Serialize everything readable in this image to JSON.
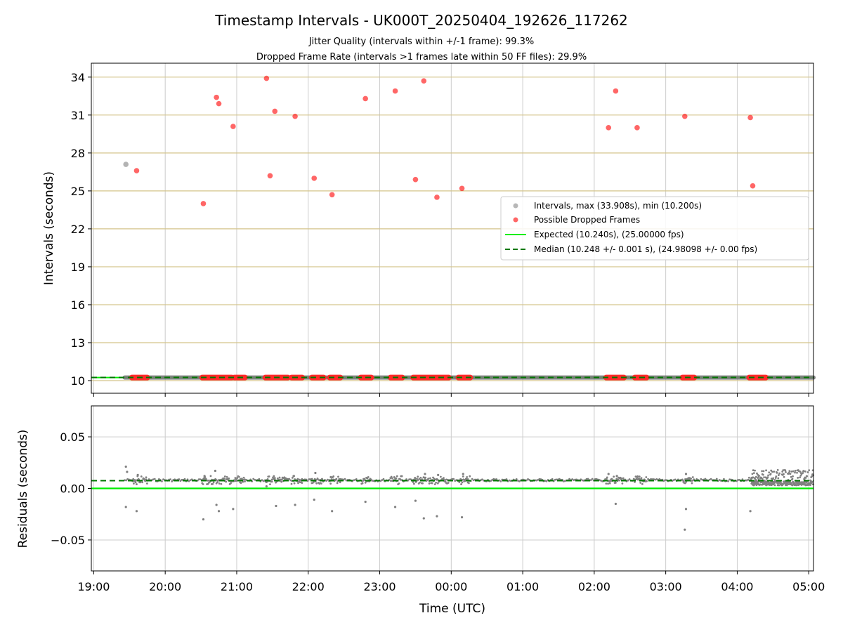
{
  "chart_data": [
    {
      "type": "scatter",
      "title": "Timestamp Intervals - UK000T_20250404_192626_117262",
      "subtitle_lines": [
        "Jitter Quality (intervals within +/-1 frame): 99.3%",
        "Dropped Frame Rate (intervals >1 frames late within 50 FF files): 29.9%"
      ],
      "xlabel": "",
      "ylabel": "Intervals (seconds)",
      "xlim": [
        "18:58",
        "05:04"
      ],
      "ylim": [
        9.0,
        35.1
      ],
      "yticks": [
        10,
        13,
        16,
        19,
        22,
        25,
        28,
        31,
        34
      ],
      "legend_position": "center-right",
      "series": [
        {
          "name": "Intervals, max (33.908s), min (10.200s)",
          "color": "#999999",
          "points": [
            {
              "x": "19:27",
              "y": 27.1
            }
          ],
          "baseline": {
            "x_start": "19:26",
            "x_end": "05:04",
            "y": 10.24
          }
        },
        {
          "name": "Possible Dropped Frames",
          "color": "#ff0000",
          "points": [
            {
              "x": "19:36",
              "y": 26.6
            },
            {
              "x": "20:32",
              "y": 24.0
            },
            {
              "x": "20:43",
              "y": 32.4
            },
            {
              "x": "20:45",
              "y": 31.9
            },
            {
              "x": "20:57",
              "y": 30.1
            },
            {
              "x": "21:25",
              "y": 33.9
            },
            {
              "x": "21:28",
              "y": 26.2
            },
            {
              "x": "21:32",
              "y": 31.3
            },
            {
              "x": "21:49",
              "y": 30.9
            },
            {
              "x": "22:05",
              "y": 26.0
            },
            {
              "x": "22:20",
              "y": 24.7
            },
            {
              "x": "22:48",
              "y": 32.3
            },
            {
              "x": "23:13",
              "y": 32.9
            },
            {
              "x": "23:30",
              "y": 25.9
            },
            {
              "x": "23:37",
              "y": 33.7
            },
            {
              "x": "23:48",
              "y": 24.5
            },
            {
              "x": "00:09",
              "y": 25.2
            },
            {
              "x": "02:12",
              "y": 30.0
            },
            {
              "x": "02:18",
              "y": 32.9
            },
            {
              "x": "02:36",
              "y": 30.0
            },
            {
              "x": "03:16",
              "y": 30.9
            },
            {
              "x": "04:11",
              "y": 30.8
            },
            {
              "x": "04:13",
              "y": 25.4
            }
          ],
          "dropped_bands": [
            [
              "19:32",
              "19:45"
            ],
            [
              "20:31",
              "20:56"
            ],
            [
              "20:58",
              "21:07"
            ],
            [
              "21:24",
              "21:43"
            ],
            [
              "21:46",
              "21:55"
            ],
            [
              "22:03",
              "22:13"
            ],
            [
              "22:18",
              "22:27"
            ],
            [
              "22:44",
              "22:53"
            ],
            [
              "23:09",
              "23:19"
            ],
            [
              "23:28",
              "23:58"
            ],
            [
              "00:06",
              "00:16"
            ],
            [
              "02:10",
              "02:25"
            ],
            [
              "02:34",
              "02:44"
            ],
            [
              "03:14",
              "03:24"
            ],
            [
              "04:10",
              "04:24"
            ]
          ],
          "band_y": 10.24
        },
        {
          "name": "Expected (10.240s), (25.00000 fps)",
          "color": "#00ee00",
          "style": "solid",
          "y": 10.24
        },
        {
          "name": "Median (10.248 +/- 0.001 s), (24.98098 +/- 0.00 fps)",
          "color": "#007700",
          "style": "dashed",
          "y": 10.248
        }
      ],
      "grid": {
        "x": true,
        "y": true
      }
    },
    {
      "type": "scatter",
      "xlabel": "Time (UTC)",
      "ylabel": "Residuals (seconds)",
      "xlim": [
        "18:58",
        "05:04"
      ],
      "ylim": [
        -0.08,
        0.08
      ],
      "yticks": [
        -0.05,
        0.0,
        0.05
      ],
      "ytick_labels": [
        "−0.05",
        "0.00",
        "0.05"
      ],
      "xticks": [
        "19:00",
        "20:00",
        "21:00",
        "22:00",
        "23:00",
        "00:00",
        "01:00",
        "02:00",
        "03:00",
        "04:00",
        "05:00"
      ],
      "series": [
        {
          "name": "",
          "color": "#808080",
          "baseline_y": 0.008,
          "points": [
            {
              "x": "19:27",
              "y": 0.021
            },
            {
              "x": "19:28",
              "y": 0.016
            },
            {
              "x": "19:27",
              "y": -0.018
            },
            {
              "x": "19:36",
              "y": -0.022
            },
            {
              "x": "19:37",
              "y": 0.013
            },
            {
              "x": "20:32",
              "y": -0.03
            },
            {
              "x": "20:33",
              "y": 0.012
            },
            {
              "x": "20:42",
              "y": 0.017
            },
            {
              "x": "20:43",
              "y": -0.016
            },
            {
              "x": "20:45",
              "y": -0.022
            },
            {
              "x": "20:57",
              "y": -0.02
            },
            {
              "x": "21:25",
              "y": 0.002
            },
            {
              "x": "21:33",
              "y": -0.017
            },
            {
              "x": "21:48",
              "y": 0.012
            },
            {
              "x": "21:49",
              "y": -0.016
            },
            {
              "x": "22:05",
              "y": -0.011
            },
            {
              "x": "22:06",
              "y": 0.015
            },
            {
              "x": "22:19",
              "y": 0.011
            },
            {
              "x": "22:20",
              "y": -0.022
            },
            {
              "x": "22:48",
              "y": -0.013
            },
            {
              "x": "23:13",
              "y": -0.018
            },
            {
              "x": "23:30",
              "y": -0.012
            },
            {
              "x": "23:37",
              "y": -0.029
            },
            {
              "x": "23:38",
              "y": 0.014
            },
            {
              "x": "23:48",
              "y": -0.027
            },
            {
              "x": "23:49",
              "y": 0.013
            },
            {
              "x": "00:09",
              "y": -0.028
            },
            {
              "x": "00:10",
              "y": 0.014
            },
            {
              "x": "02:12",
              "y": 0.014
            },
            {
              "x": "02:18",
              "y": -0.015
            },
            {
              "x": "02:19",
              "y": 0.012
            },
            {
              "x": "02:36",
              "y": 0.011
            },
            {
              "x": "03:16",
              "y": -0.04
            },
            {
              "x": "03:17",
              "y": -0.02
            },
            {
              "x": "03:17",
              "y": 0.014
            },
            {
              "x": "04:11",
              "y": -0.022
            }
          ],
          "dense_region": {
            "x_start": "04:12",
            "x_end": "05:04",
            "y_min": 0.003,
            "y_max": 0.018
          }
        },
        {
          "name": "Expected",
          "color": "#00ee00",
          "style": "solid",
          "y": 0.0
        },
        {
          "name": "Median",
          "color": "#007700",
          "style": "dashed",
          "y": 0.0075
        }
      ],
      "grid": {
        "x": true,
        "y": true
      }
    }
  ]
}
